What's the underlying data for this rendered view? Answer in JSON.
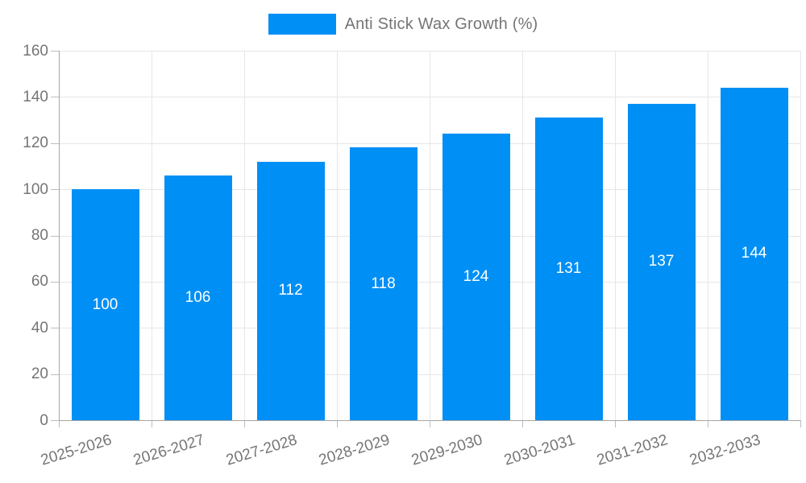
{
  "chart_data": {
    "type": "bar",
    "legend_label": "Anti Stick Wax Growth (%)",
    "categories": [
      "2025-2026",
      "2026-2027",
      "2027-2028",
      "2028-2029",
      "2029-2030",
      "2030-2031",
      "2031-2032",
      "2032-2033"
    ],
    "values": [
      100,
      106,
      112,
      118,
      124,
      131,
      137,
      144
    ],
    "ylim": [
      0,
      160
    ],
    "ytick_step": 20,
    "grid": true,
    "legend_position": "top",
    "bar_color": "#008ff5",
    "value_label_color": "#ffffff",
    "axis_text_color": "#757575",
    "grid_color": "#e6e6e6",
    "axis_line_color": "#a6a6a6"
  }
}
